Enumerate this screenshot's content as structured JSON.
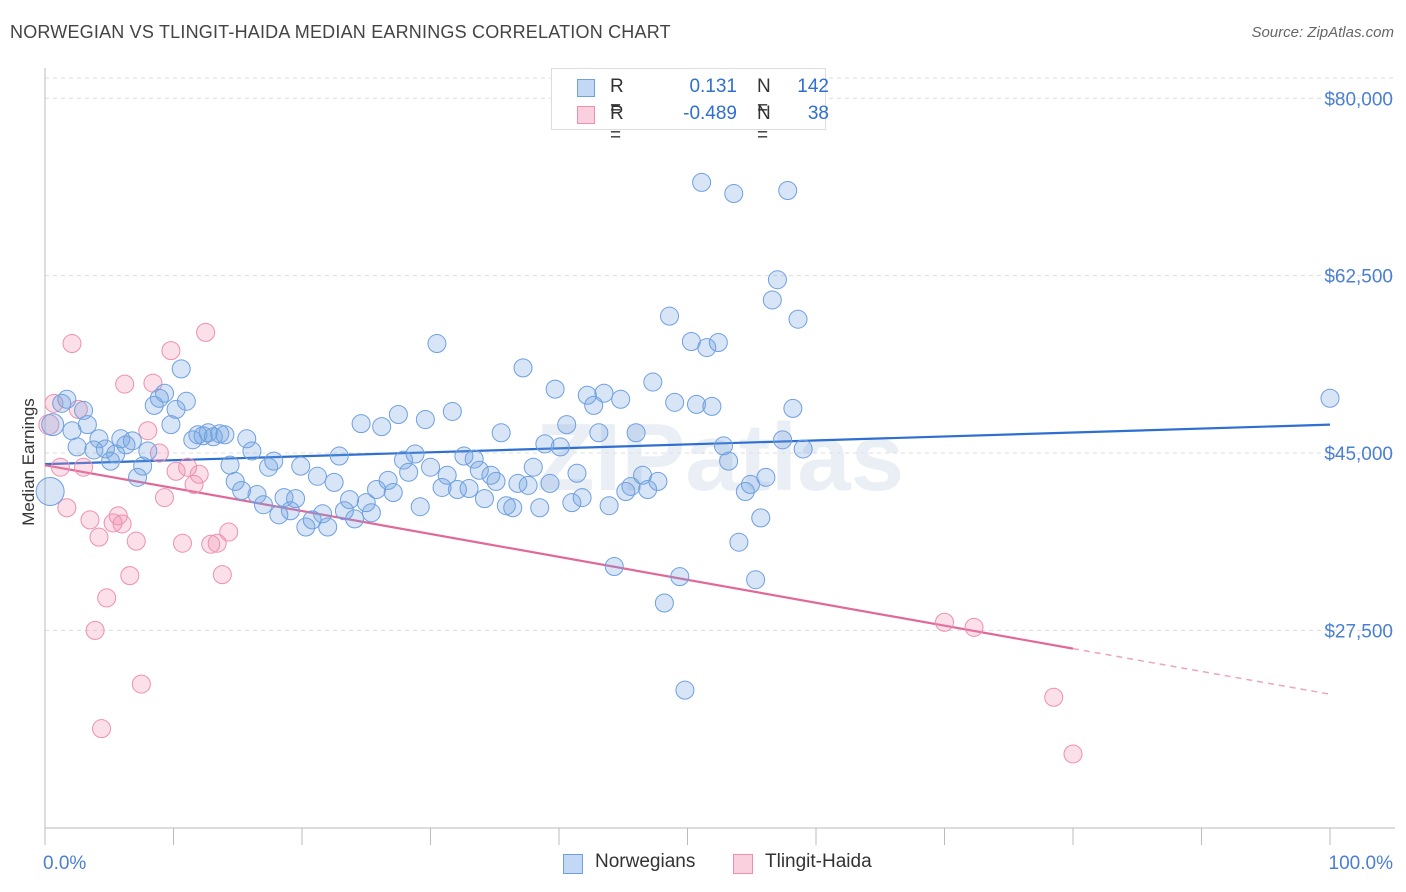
{
  "title": "NORWEGIAN VS TLINGIT-HAIDA MEDIAN EARNINGS CORRELATION CHART",
  "source": "Source: ZipAtlas.com",
  "watermark": "ZIPatlas",
  "legend": {
    "rows": [
      {
        "r_label": "R =",
        "r_value": "0.131",
        "n_label": "N =",
        "n_value": "142",
        "color": "#6fa0e0"
      },
      {
        "r_label": "R =",
        "r_value": "-0.489",
        "n_label": "N =",
        "n_value": "38",
        "color": "#ef8fb0"
      }
    ]
  },
  "bottom_legend": [
    "Norwegians",
    "Tlingit-Haida"
  ],
  "chart_data": {
    "type": "scatter",
    "title": "NORWEGIAN VS TLINGIT-HAIDA MEDIAN EARNINGS CORRELATION CHART",
    "xlabel": "",
    "ylabel": "Median Earnings",
    "xlim": [
      0,
      100
    ],
    "ylim": [
      8000,
      82000
    ],
    "x_tick_labels": [
      "0.0%",
      "100.0%"
    ],
    "y_ticks": [
      27500,
      45000,
      62500,
      80000
    ],
    "y_tick_labels": [
      "$27,500",
      "$45,000",
      "$62,500",
      "$80,000"
    ],
    "grid": true,
    "legend_position": "top-center",
    "colors": {
      "norwegians": "#6fa0e0",
      "tlingit": "#ef8fb0",
      "norwegians_line": "#2f6fd0",
      "tlingit_line": "#e0699a",
      "axis_text": "#4a7fd4"
    },
    "series": [
      {
        "name": "Norwegians",
        "trend": {
          "x0": 0,
          "y0": 43900,
          "x1": 100,
          "y1": 47800
        },
        "points": [
          [
            0.4,
            41200,
            14
          ],
          [
            0.6,
            47800,
            11
          ],
          [
            1.3,
            49900,
            9
          ],
          [
            1.7,
            50300,
            9
          ],
          [
            2.1,
            47200,
            9
          ],
          [
            2.5,
            45600,
            9
          ],
          [
            3.0,
            49200,
            9
          ],
          [
            3.3,
            47800,
            9
          ],
          [
            3.8,
            45300,
            9
          ],
          [
            4.2,
            46400,
            9
          ],
          [
            4.7,
            45400,
            9
          ],
          [
            5.1,
            44200,
            9
          ],
          [
            5.5,
            44900,
            9
          ],
          [
            5.9,
            46400,
            9
          ],
          [
            6.3,
            45800,
            9
          ],
          [
            6.8,
            46200,
            9
          ],
          [
            7.2,
            42600,
            9
          ],
          [
            7.6,
            43700,
            9
          ],
          [
            8.0,
            45200,
            9
          ],
          [
            8.5,
            49700,
            9
          ],
          [
            8.9,
            50400,
            9
          ],
          [
            9.3,
            50900,
            9
          ],
          [
            9.8,
            47800,
            9
          ],
          [
            10.2,
            49300,
            9
          ],
          [
            10.6,
            53300,
            9
          ],
          [
            11.0,
            50100,
            9
          ],
          [
            11.5,
            46300,
            9
          ],
          [
            11.9,
            46800,
            9
          ],
          [
            12.3,
            46700,
            9
          ],
          [
            12.7,
            47000,
            9
          ],
          [
            13.1,
            46600,
            9
          ],
          [
            13.6,
            46900,
            9
          ],
          [
            14.0,
            46800,
            9
          ],
          [
            14.4,
            43800,
            9
          ],
          [
            14.8,
            42200,
            9
          ],
          [
            15.3,
            41300,
            9
          ],
          [
            15.7,
            46400,
            9
          ],
          [
            16.1,
            45200,
            9
          ],
          [
            16.5,
            40900,
            9
          ],
          [
            17.0,
            39900,
            9
          ],
          [
            17.4,
            43600,
            9
          ],
          [
            17.8,
            44200,
            9
          ],
          [
            18.2,
            38900,
            9
          ],
          [
            18.6,
            40600,
            9
          ],
          [
            19.1,
            39300,
            9
          ],
          [
            19.5,
            40500,
            9
          ],
          [
            19.9,
            43700,
            9
          ],
          [
            20.3,
            37700,
            9
          ],
          [
            20.8,
            38400,
            9
          ],
          [
            21.2,
            42700,
            9
          ],
          [
            21.6,
            39000,
            9
          ],
          [
            22.0,
            37700,
            9
          ],
          [
            22.5,
            42100,
            9
          ],
          [
            22.9,
            44700,
            9
          ],
          [
            23.3,
            39300,
            9
          ],
          [
            23.7,
            40400,
            9
          ],
          [
            24.1,
            38500,
            9
          ],
          [
            24.6,
            47900,
            9
          ],
          [
            25.0,
            40100,
            9
          ],
          [
            25.4,
            39100,
            9
          ],
          [
            25.8,
            41400,
            9
          ],
          [
            26.2,
            47600,
            9
          ],
          [
            26.7,
            42300,
            9
          ],
          [
            27.1,
            41100,
            9
          ],
          [
            27.5,
            48800,
            9
          ],
          [
            27.9,
            44300,
            9
          ],
          [
            28.3,
            43100,
            9
          ],
          [
            28.8,
            44900,
            9
          ],
          [
            29.2,
            39700,
            9
          ],
          [
            29.6,
            48300,
            9
          ],
          [
            30.0,
            43600,
            9
          ],
          [
            30.5,
            55800,
            9
          ],
          [
            30.9,
            41600,
            9
          ],
          [
            31.3,
            42800,
            9
          ],
          [
            31.7,
            49100,
            9
          ],
          [
            32.1,
            41400,
            9
          ],
          [
            32.6,
            44700,
            9
          ],
          [
            33.0,
            41500,
            9
          ],
          [
            33.4,
            44400,
            9
          ],
          [
            33.8,
            43300,
            9
          ],
          [
            34.2,
            40500,
            9
          ],
          [
            34.7,
            42800,
            9
          ],
          [
            35.1,
            42200,
            9
          ],
          [
            35.5,
            47000,
            9
          ],
          [
            35.9,
            39800,
            9
          ],
          [
            36.4,
            39600,
            9
          ],
          [
            36.8,
            42000,
            9
          ],
          [
            37.2,
            53400,
            9
          ],
          [
            37.6,
            41800,
            9
          ],
          [
            38.0,
            43600,
            9
          ],
          [
            38.5,
            39600,
            9
          ],
          [
            38.9,
            45900,
            9
          ],
          [
            39.3,
            42000,
            9
          ],
          [
            39.7,
            51300,
            9
          ],
          [
            40.1,
            45600,
            9
          ],
          [
            40.6,
            47800,
            9
          ],
          [
            41.0,
            40100,
            9
          ],
          [
            41.4,
            43000,
            9
          ],
          [
            41.8,
            40600,
            9
          ],
          [
            42.2,
            50700,
            9
          ],
          [
            42.7,
            49700,
            9
          ],
          [
            43.1,
            47000,
            9
          ],
          [
            43.5,
            50900,
            9
          ],
          [
            43.9,
            39800,
            9
          ],
          [
            44.3,
            33800,
            9
          ],
          [
            44.8,
            50300,
            9
          ],
          [
            45.2,
            41200,
            9
          ],
          [
            45.6,
            41700,
            9
          ],
          [
            46.0,
            47000,
            9
          ],
          [
            46.5,
            42800,
            9
          ],
          [
            46.9,
            41400,
            9
          ],
          [
            47.3,
            52000,
            9
          ],
          [
            47.7,
            42200,
            9
          ],
          [
            48.2,
            30200,
            9
          ],
          [
            48.6,
            58500,
            9
          ],
          [
            49.0,
            50000,
            9
          ],
          [
            49.4,
            32800,
            9
          ],
          [
            49.8,
            21600,
            9
          ],
          [
            50.3,
            56000,
            9
          ],
          [
            50.7,
            49800,
            9
          ],
          [
            51.1,
            71700,
            9
          ],
          [
            51.5,
            55400,
            9
          ],
          [
            51.9,
            49600,
            9
          ],
          [
            52.4,
            55900,
            9
          ],
          [
            52.8,
            45700,
            9
          ],
          [
            53.2,
            44200,
            9
          ],
          [
            53.6,
            70600,
            9
          ],
          [
            54.0,
            36200,
            9
          ],
          [
            54.5,
            41200,
            9
          ],
          [
            54.9,
            41900,
            9
          ],
          [
            55.3,
            32500,
            9
          ],
          [
            55.7,
            38600,
            9
          ],
          [
            56.1,
            42600,
            9
          ],
          [
            56.6,
            60100,
            9
          ],
          [
            57.0,
            62100,
            9
          ],
          [
            57.4,
            46300,
            9
          ],
          [
            57.8,
            70900,
            9
          ],
          [
            58.2,
            49400,
            9
          ],
          [
            58.6,
            58200,
            9
          ],
          [
            59.0,
            45400,
            9
          ],
          [
            100.0,
            50400,
            9
          ]
        ]
      },
      {
        "name": "Tlingit-Haida",
        "trend": {
          "x0": 0,
          "y0": 43800,
          "x1": 80,
          "y1": 25700
        },
        "trend_dashed": {
          "x0": 80,
          "y0": 25700,
          "x1": 100,
          "y1": 21200
        },
        "points": [
          [
            0.3,
            47800,
            10
          ],
          [
            0.7,
            49900,
            9
          ],
          [
            1.2,
            43600,
            9
          ],
          [
            1.7,
            39600,
            9
          ],
          [
            2.1,
            55800,
            9
          ],
          [
            2.6,
            49300,
            9
          ],
          [
            3.0,
            43600,
            9
          ],
          [
            3.5,
            38400,
            9
          ],
          [
            3.9,
            27500,
            9
          ],
          [
            4.4,
            17800,
            9
          ],
          [
            4.8,
            30700,
            9
          ],
          [
            5.3,
            38100,
            9
          ],
          [
            5.7,
            38800,
            9
          ],
          [
            6.2,
            51800,
            9
          ],
          [
            6.6,
            32900,
            9
          ],
          [
            7.1,
            36300,
            9
          ],
          [
            7.5,
            22200,
            9
          ],
          [
            8.0,
            47200,
            9
          ],
          [
            8.4,
            51900,
            9
          ],
          [
            8.9,
            45000,
            9
          ],
          [
            9.3,
            40600,
            9
          ],
          [
            9.8,
            55100,
            9
          ],
          [
            10.2,
            43200,
            9
          ],
          [
            10.7,
            36100,
            9
          ],
          [
            11.1,
            43600,
            9
          ],
          [
            11.6,
            41900,
            9
          ],
          [
            12.0,
            42900,
            9
          ],
          [
            12.5,
            56900,
            9
          ],
          [
            12.9,
            36000,
            9
          ],
          [
            13.4,
            36100,
            9
          ],
          [
            13.8,
            33000,
            9
          ],
          [
            14.3,
            37200,
            9
          ],
          [
            70.0,
            28300,
            9
          ],
          [
            72.3,
            27800,
            9
          ],
          [
            78.5,
            20900,
            9
          ],
          [
            80.0,
            15300,
            9
          ],
          [
            4.2,
            36700,
            9
          ],
          [
            6.0,
            38000,
            9
          ]
        ]
      }
    ]
  }
}
